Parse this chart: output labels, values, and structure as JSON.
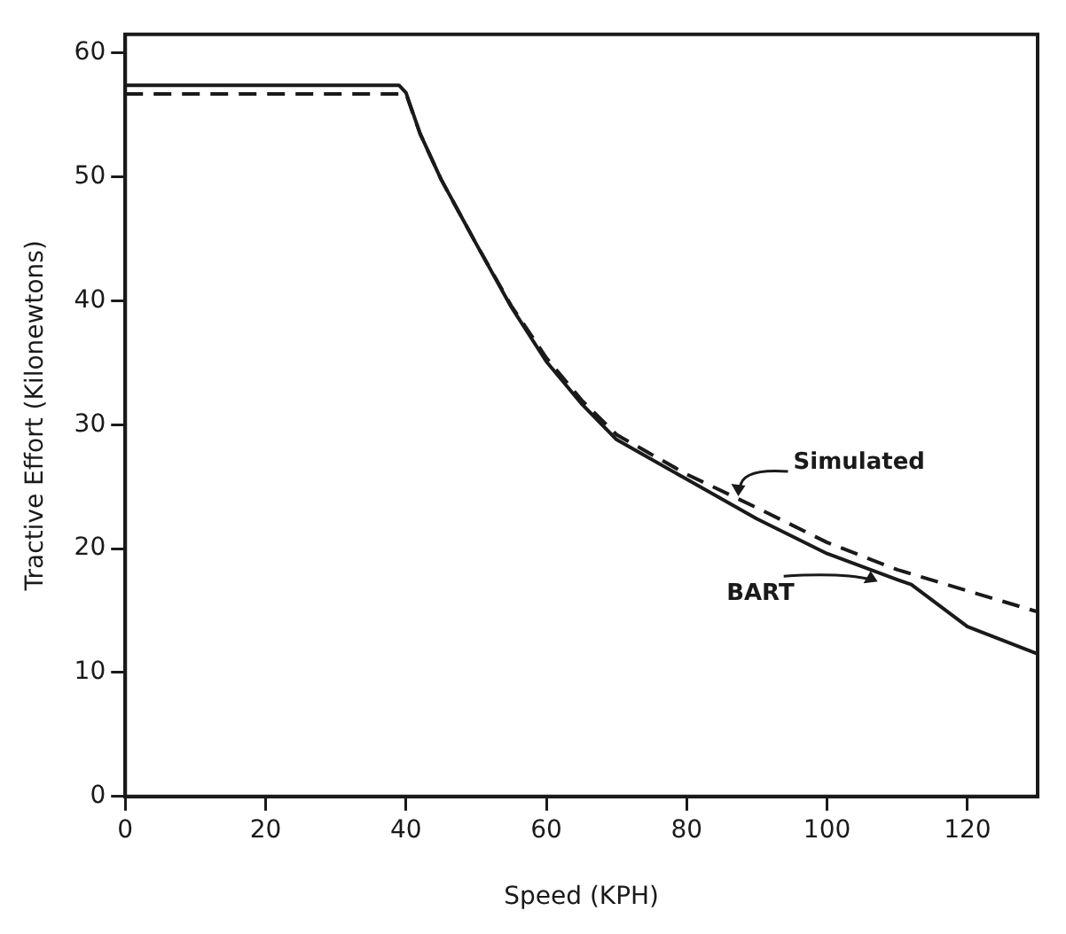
{
  "chart_data": {
    "type": "line",
    "xlabel": "Speed (KPH)",
    "ylabel": "Tractive Effort (Kilonewtons)",
    "xlim": [
      0,
      130
    ],
    "xticks": [
      0,
      20,
      40,
      60,
      80,
      100,
      120
    ],
    "ylim": [
      0,
      61.5
    ],
    "yticks": [
      0,
      10,
      20,
      30,
      40,
      50,
      60
    ],
    "grid": false,
    "legend": false,
    "marker": "none",
    "series": [
      {
        "name": "BART",
        "color": "#1a1a1a",
        "line_style": "solid",
        "x": [
          0,
          39,
          40,
          42,
          45,
          50,
          55,
          60,
          65,
          70,
          80,
          90,
          100,
          110,
          112,
          120,
          130
        ],
        "values": [
          57.4,
          57.4,
          56.8,
          53.5,
          49.8,
          44.6,
          39.5,
          35.1,
          31.7,
          28.8,
          25.6,
          22.4,
          19.6,
          17.5,
          17.1,
          13.7,
          11.5
        ]
      },
      {
        "name": "Simulated",
        "color": "#1a1a1a",
        "line_style": "dashed",
        "x": [
          0,
          40,
          42,
          45,
          50,
          55,
          60,
          65,
          70,
          80,
          90,
          100,
          110,
          120,
          130
        ],
        "values": [
          56.7,
          56.7,
          53.5,
          49.8,
          44.6,
          39.6,
          35.4,
          32,
          29.2,
          26,
          23.3,
          20.5,
          18.3,
          16.6,
          14.9
        ]
      }
    ]
  }
}
